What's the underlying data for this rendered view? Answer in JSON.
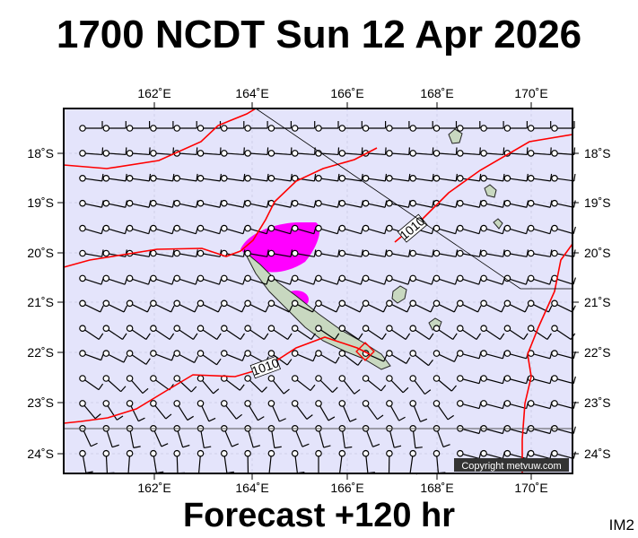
{
  "title": "1700 NCDT Sun 12 Apr 2026",
  "footer": "Forecast +120 hr",
  "image_code": "IM2",
  "copyright": "Copyright metvuw.com",
  "map": {
    "lon_labels": [
      "162˚E",
      "164˚E",
      "166˚E",
      "168˚E",
      "170˚E"
    ],
    "lat_labels": [
      "18˚S",
      "19˚S",
      "20˚S",
      "21˚S",
      "22˚S",
      "23˚S",
      "24˚S"
    ],
    "isobar_labels": [
      "1010",
      "1010"
    ],
    "colors": {
      "ocean": "#e4e4fb",
      "isobar": "#ff0000",
      "rain": "#ff00ff",
      "land": "#c8d8c0"
    }
  }
}
